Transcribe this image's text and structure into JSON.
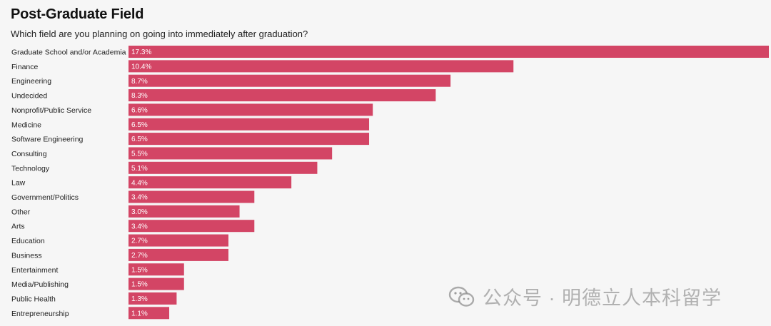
{
  "title": "Post-Graduate Field",
  "subtitle": "Which field are you planning on going into immediately after graduation?",
  "watermark": {
    "text": "公众号 · 明德立人本科留学",
    "icon": "wechat-icon"
  },
  "colors": {
    "bar": "#d34565",
    "background": "#f6f6f6",
    "value_text": "#ffffff"
  },
  "chart_data": {
    "type": "bar",
    "orientation": "horizontal",
    "categories": [
      "Graduate School and/or Academia",
      "Finance",
      "Engineering",
      "Undecided",
      "Nonprofit/Public Service",
      "Medicine",
      "Software Engineering",
      "Consulting",
      "Technology",
      "Law",
      "Government/Politics",
      "Other",
      "Arts",
      "Education",
      "Business",
      "Entertainment",
      "Media/Publishing",
      "Public Health",
      "Entrepreneurship"
    ],
    "values": [
      17.3,
      10.4,
      8.7,
      8.3,
      6.6,
      6.5,
      6.5,
      5.5,
      5.1,
      4.4,
      3.4,
      3.0,
      3.4,
      2.7,
      2.7,
      1.5,
      1.5,
      1.3,
      1.1
    ],
    "value_labels": [
      "17.3%",
      "10.4%",
      "8.7%",
      "8.3%",
      "6.6%",
      "6.5%",
      "6.5%",
      "5.5%",
      "5.1%",
      "4.4%",
      "3.4%",
      "3.0%",
      "3.4%",
      "2.7%",
      "2.7%",
      "1.5%",
      "1.5%",
      "1.3%",
      "1.1%"
    ],
    "unit": "%",
    "xlim": [
      0,
      17.3
    ],
    "grid": false,
    "legend": "none"
  }
}
